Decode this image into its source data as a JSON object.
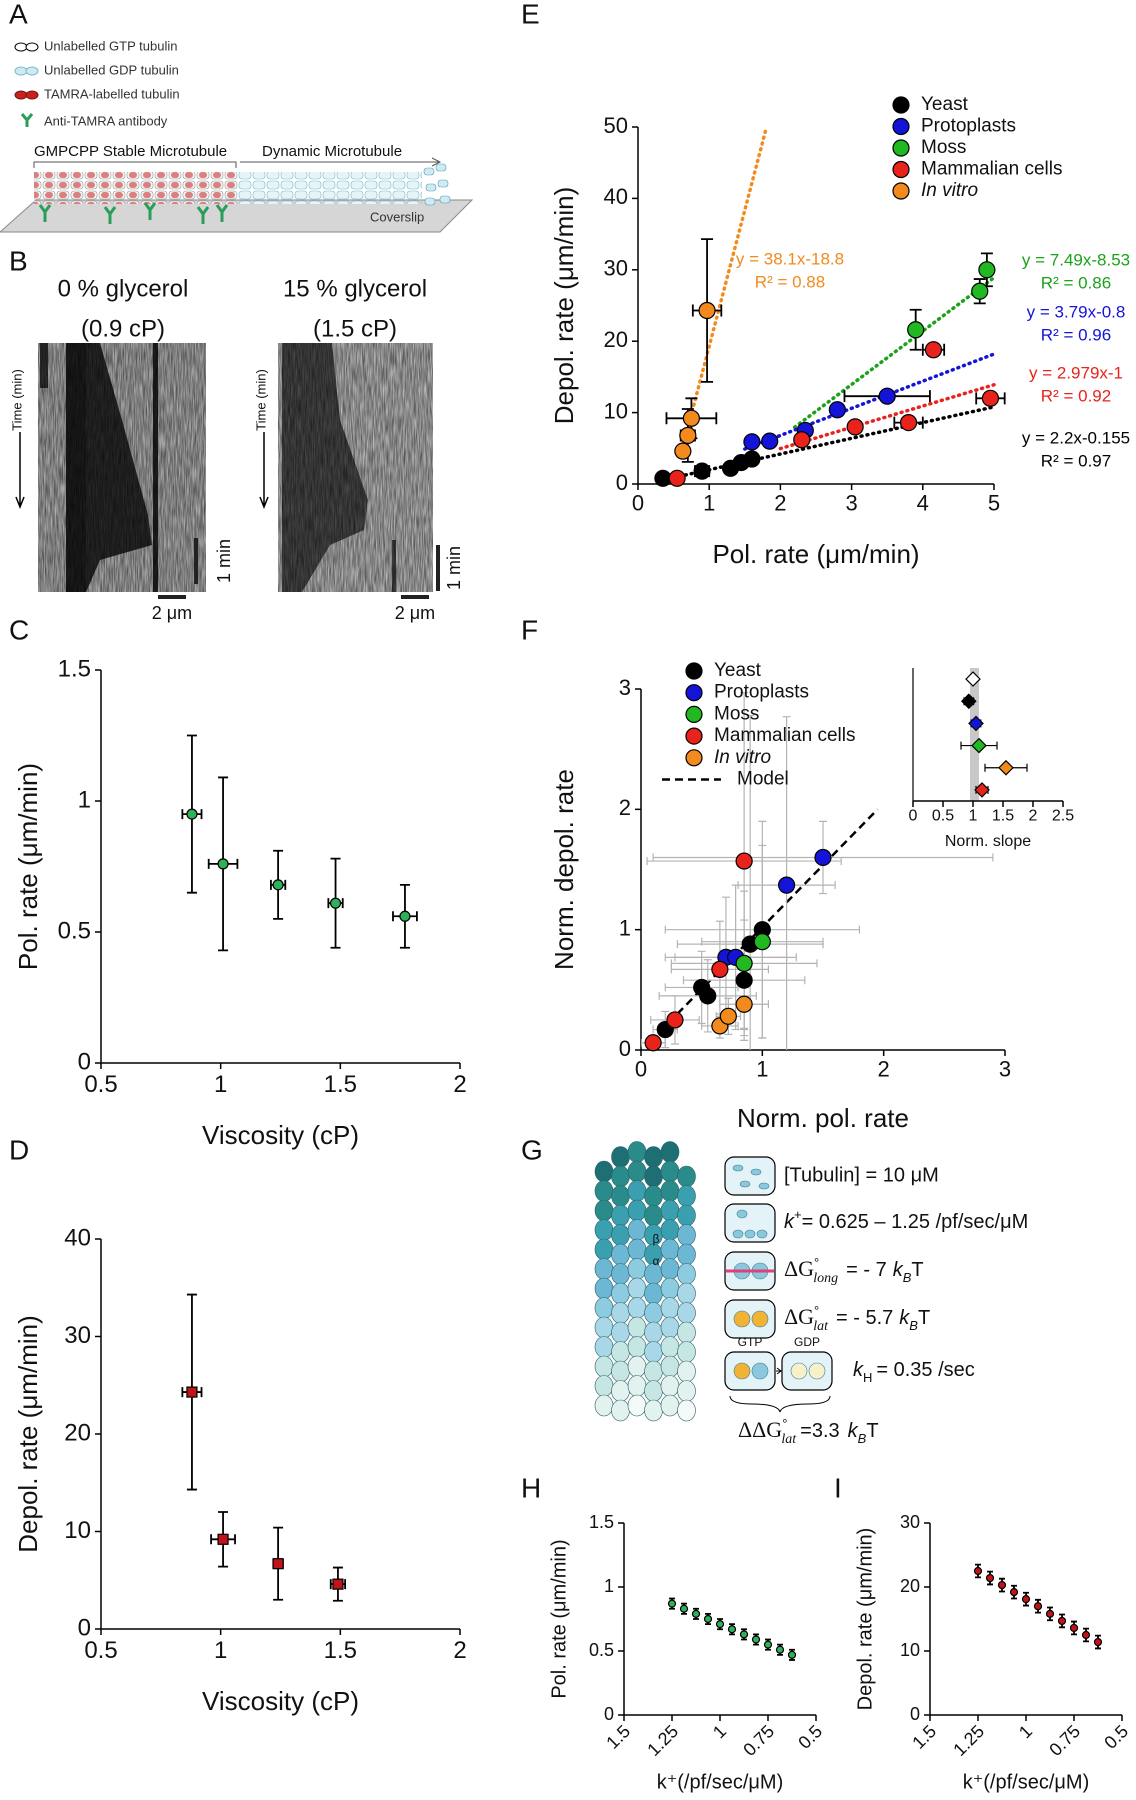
{
  "panels": {
    "a": "A",
    "b": "B",
    "c": "C",
    "d": "D",
    "e": "E",
    "f": "F",
    "g": "G",
    "h": "H",
    "i": "I"
  },
  "panel_a": {
    "legend": [
      "Unlabelled GTP tubulin",
      "Unlabelled GDP tubulin",
      "TAMRA-labelled tubulin",
      "Anti-TAMRA antibody"
    ],
    "stable": "GMPCPP Stable Microtubule",
    "dynamic": "Dynamic Microtubule",
    "coverslip": "Coverslip"
  },
  "panel_b": {
    "left": {
      "title": "0 % glycerol",
      "viscosity": "(0.9 cP)"
    },
    "right": {
      "title": "15 % glycerol",
      "viscosity": "(1.5 cP)"
    },
    "time": "Time (min)",
    "time_bar": "1 min",
    "space_bar": "2 μm"
  },
  "panel_g": {
    "tubulin": "[Tubulin] = 10 μM",
    "kplus": {
      "k": "k",
      "sup": "+",
      "rest": "= 0.625 – 1.25 /pf/sec/μM"
    },
    "glong": {
      "dg": "ΔG",
      "deg": "°",
      "sub": "long",
      "rest": "= - 7",
      "k": "k",
      "kb": "B",
      "t": "T"
    },
    "glat": {
      "dg": "ΔG",
      "deg": "°",
      "sub": "lat",
      "rest": "= - 5.7",
      "k": "k",
      "kb": "B",
      "t": "T"
    },
    "gtp": "GTP",
    "gdp": "GDP",
    "kh": {
      "k": "k",
      "sub": "H",
      "rest": "= 0.35 /sec"
    },
    "ddg": {
      "dg": "ΔΔG",
      "deg": "°",
      "sub": "lat",
      "rest": "=3.3",
      "k": "k",
      "kb": "B",
      "t": "T"
    },
    "beta": "β",
    "alpha": "α"
  },
  "chart_data": [
    {
      "type": "scatter",
      "xlabel": "Viscosity (cP)",
      "ylabel": "Pol. rate (μm/min)",
      "xlim": [
        0.5,
        2
      ],
      "xticks": [
        0.5,
        1,
        1.5,
        2
      ],
      "ylim": [
        0,
        1.5
      ],
      "yticks": [
        0,
        0.5,
        1,
        1.5
      ],
      "series": [
        {
          "color": "#2fb05a",
          "marker": "circle",
          "x": [
            0.88,
            1.01,
            1.24,
            1.48,
            1.77
          ],
          "y": [
            0.95,
            0.76,
            0.68,
            0.61,
            0.56
          ],
          "xerr": [
            0.04,
            0.06,
            0.03,
            0.03,
            0.05
          ],
          "yerr": [
            0.3,
            0.33,
            0.13,
            0.17,
            0.12
          ]
        }
      ]
    },
    {
      "type": "scatter",
      "xlabel": "Viscosity (cP)",
      "ylabel": "Depol. rate (μm/min)",
      "xlim": [
        0.5,
        2
      ],
      "xticks": [
        0.5,
        1,
        1.5,
        2
      ],
      "ylim": [
        0,
        40
      ],
      "yticks": [
        0,
        10,
        20,
        30,
        40
      ],
      "series": [
        {
          "color": "#c0141a",
          "marker": "square",
          "x": [
            0.88,
            1.01,
            1.24,
            1.49
          ],
          "y": [
            24.3,
            9.2,
            6.7,
            4.6
          ],
          "xerr": [
            0.04,
            0.05,
            0.02,
            0.03
          ],
          "yerr": [
            10,
            2.8,
            3.7,
            1.7
          ]
        }
      ]
    },
    {
      "type": "scatter",
      "xlabel": "Pol. rate (μm/min)",
      "ylabel": "Depol. rate (μm/min)",
      "xlim": [
        0,
        5
      ],
      "xticks": [
        0,
        1,
        2,
        3,
        4,
        5
      ],
      "ylim": [
        0,
        50
      ],
      "yticks": [
        0,
        10,
        20,
        30,
        40,
        50
      ],
      "legend": "top-right",
      "series": [
        {
          "name": "Yeast",
          "color": "#000000",
          "marker": "circle",
          "x": [
            0.35,
            0.9,
            1.3,
            1.45,
            1.6
          ],
          "y": [
            0.8,
            1.8,
            2.2,
            3,
            3.5
          ],
          "xerr": [
            null,
            0.1,
            null,
            null,
            null
          ],
          "yerr": [
            null,
            null,
            null,
            null,
            null
          ]
        },
        {
          "name": "Protoplasts",
          "color": "#1414d8",
          "marker": "circle",
          "x": [
            1.6,
            1.85,
            2.35,
            2.8,
            3.5
          ],
          "y": [
            5.9,
            6,
            7.5,
            10.4,
            12.3
          ],
          "xerr": [
            null,
            null,
            null,
            null,
            0.6
          ],
          "yerr": [
            null,
            null,
            null,
            null,
            null
          ]
        },
        {
          "name": "Moss",
          "color": "#22b822",
          "marker": "circle",
          "x": [
            3.9,
            4.8,
            4.9
          ],
          "y": [
            21.6,
            27,
            30
          ],
          "xerr": [
            null,
            null,
            null
          ],
          "yerr": [
            2.8,
            1.7,
            2.3
          ]
        },
        {
          "name": "Mammalian cells",
          "color": "#e8231c",
          "marker": "circle",
          "x": [
            0.55,
            2.3,
            3.05,
            3.8,
            4.15,
            4.95
          ],
          "y": [
            0.8,
            6.2,
            8,
            8.6,
            18.8,
            12
          ],
          "xerr": [
            null,
            null,
            null,
            0.2,
            0.15,
            0.2
          ],
          "yerr": [
            null,
            null,
            null,
            null,
            null,
            null
          ]
        },
        {
          "name": "In vitro",
          "style": "italic",
          "color": "#f28a1d",
          "marker": "circle",
          "x": [
            0.63,
            0.7,
            0.75,
            0.97
          ],
          "y": [
            4.6,
            6.8,
            9.2,
            24.3
          ],
          "xerr": [
            null,
            0.1,
            0.35,
            0.2
          ],
          "yerr": [
            null,
            3.7,
            2.8,
            10
          ]
        }
      ],
      "fits": [
        {
          "label": "y = 38.1x-18.8",
          "r2": "R² = 0.88",
          "color": "#f28a1d",
          "x": [
            0.72,
            1.8
          ],
          "y": [
            8.6,
            49.8
          ]
        },
        {
          "label": "y = 7.49x-8.53",
          "r2": "R² = 0.86",
          "color": "#1aa31a",
          "x": [
            2.2,
            5
          ],
          "y": [
            7.95,
            28.9
          ]
        },
        {
          "label": "y = 3.79x-0.8",
          "r2": "R² = 0.96",
          "color": "#1414d8",
          "x": [
            1.5,
            5
          ],
          "y": [
            4.9,
            18.2
          ]
        },
        {
          "label": "y = 2.979x-1",
          "r2": "R² = 0.92",
          "color": "#e8231c",
          "x": [
            2,
            5
          ],
          "y": [
            4.96,
            13.9
          ]
        },
        {
          "label": "y = 2.2x-0.155",
          "r2": "R² = 0.97",
          "color": "#000000",
          "x": [
            0.5,
            5
          ],
          "y": [
            0.9,
            10.8
          ]
        }
      ]
    },
    {
      "type": "scatter",
      "xlabel": "Norm. pol. rate",
      "ylabel": "Norm. depol. rate",
      "xlim": [
        0,
        3
      ],
      "xticks": [
        0,
        1,
        2,
        3
      ],
      "ylim": [
        0,
        3
      ],
      "yticks": [
        0,
        1,
        2,
        3
      ],
      "legend": "top-left",
      "series": [
        {
          "name": "Yeast",
          "color": "#000000",
          "errcolor": "#b4b4b4",
          "marker": "circle",
          "x": [
            0.2,
            0.5,
            0.55,
            0.85,
            0.9,
            1.0
          ],
          "y": [
            0.17,
            0.52,
            0.45,
            0.58,
            0.88,
            1.0
          ],
          "xerr": [
            0.1,
            0.3,
            0.4,
            0.5,
            0.6,
            0.8
          ],
          "yerr": [
            0.15,
            0.3,
            0.3,
            0.5,
            1.9,
            0.9
          ]
        },
        {
          "name": "Protoplasts",
          "color": "#1414d8",
          "errcolor": "#b4b4b4",
          "marker": "circle",
          "x": [
            0.7,
            0.78,
            1.2,
            1.5
          ],
          "y": [
            0.77,
            0.77,
            1.37,
            1.6
          ],
          "xerr": [
            0.5,
            0.5,
            0.4,
            1.4
          ],
          "yerr": [
            0.5,
            0.6,
            1.4,
            0.3
          ]
        },
        {
          "name": "Moss",
          "color": "#22b822",
          "errcolor": "#b4b4b4",
          "marker": "circle",
          "x": [
            0.85,
            1.0
          ],
          "y": [
            0.72,
            0.9
          ],
          "xerr": [
            0.6,
            0.5
          ],
          "yerr": [
            0.6,
            0.8
          ]
        },
        {
          "name": "Mammalian cells",
          "color": "#e8231c",
          "errcolor": "#b4b4b4",
          "marker": "circle",
          "x": [
            0.1,
            0.28,
            0.65,
            0.85
          ],
          "y": [
            0.06,
            0.25,
            0.67,
            1.57
          ],
          "xerr": [
            0.1,
            0.2,
            0.4,
            0.8
          ],
          "yerr": [
            0.05,
            0.2,
            0.4,
            1.4
          ]
        },
        {
          "name": "In vitro",
          "style": "italic",
          "color": "#f28a1d",
          "errcolor": "#b4b4b4",
          "marker": "circle",
          "x": [
            0.65,
            0.72,
            0.85
          ],
          "y": [
            0.2,
            0.28,
            0.38
          ],
          "xerr": [
            0.15,
            0.1,
            0.2
          ],
          "yerr": [
            0.1,
            0.15,
            0.2
          ]
        }
      ],
      "model": {
        "name": "Model",
        "x": [
          0.3,
          1.95
        ],
        "y": [
          0.3,
          2.0
        ]
      }
    },
    {
      "type": "dot",
      "xlabel": "Norm. slope",
      "xlim": [
        0,
        2.5
      ],
      "xticks": [
        0,
        0.5,
        1,
        1.5,
        2,
        2.5
      ],
      "categories": [
        null,
        null,
        null,
        null,
        null,
        null
      ],
      "values": [
        1.0,
        0.93,
        1.05,
        1.1,
        1.55,
        1.15
      ],
      "xerr": [
        null,
        0.08,
        0.08,
        0.3,
        0.35,
        0.1
      ],
      "colors": [
        "#ffffff",
        "#000000",
        "#1414d8",
        "#22b822",
        "#f28a1d",
        "#e8231c"
      ],
      "marker": "diamond",
      "shade": [
        0.95,
        1.1
      ]
    },
    {
      "type": "scatter",
      "xlabel": "k⁺(/pf/sec/μM)",
      "ylabel": "Pol. rate (μm/min)",
      "xlim": [
        1.5,
        0.5
      ],
      "xticks": [
        1.5,
        1.25,
        1,
        0.75,
        0.5
      ],
      "ylim": [
        0,
        1.5
      ],
      "yticks": [
        0,
        0.5,
        1,
        1.5
      ],
      "series": [
        {
          "color": "#2fb05a",
          "marker": "circle",
          "x": [
            1.25,
            1.1875,
            1.125,
            1.0625,
            1,
            0.9375,
            0.875,
            0.8125,
            0.75,
            0.6875,
            0.625
          ],
          "y": [
            0.87,
            0.83,
            0.79,
            0.75,
            0.71,
            0.67,
            0.63,
            0.59,
            0.55,
            0.51,
            0.47
          ],
          "yerr": [
            0.04,
            0.04,
            0.04,
            0.04,
            0.04,
            0.04,
            0.04,
            0.04,
            0.04,
            0.04,
            0.04
          ]
        }
      ]
    },
    {
      "type": "scatter",
      "xlabel": "k⁺(/pf/sec/μM)",
      "ylabel": "Depol. rate (μm/min)",
      "xlim": [
        1.5,
        0.5
      ],
      "xticks": [
        1.5,
        1.25,
        1,
        0.75,
        0.5
      ],
      "ylim": [
        0,
        30
      ],
      "yticks": [
        0,
        10,
        20,
        30
      ],
      "series": [
        {
          "color": "#c0141a",
          "marker": "circle",
          "x": [
            1.25,
            1.1875,
            1.125,
            1.0625,
            1,
            0.9375,
            0.875,
            0.8125,
            0.75,
            0.6875,
            0.625
          ],
          "y": [
            22.5,
            21.4,
            20.3,
            19.2,
            18.1,
            17.0,
            15.8,
            14.7,
            13.6,
            12.5,
            11.4
          ],
          "yerr": [
            1,
            1,
            1,
            1,
            1,
            1,
            1,
            1,
            1,
            1,
            1
          ]
        }
      ]
    }
  ]
}
